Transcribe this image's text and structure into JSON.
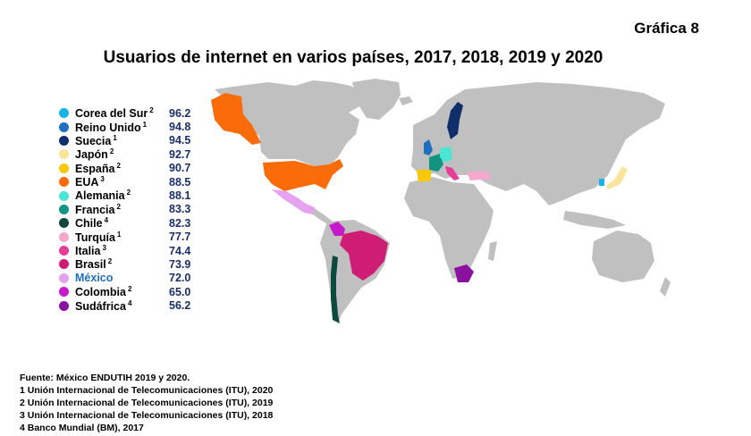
{
  "label": "Gráfica 8",
  "title": "Usuarios de internet en varios países, 2017, 2018, 2019 y 2020",
  "countries": [
    {
      "name": "Corea del Sur",
      "note": "2",
      "value": "96.2",
      "color": "#19b2e6"
    },
    {
      "name": "Reino Unido",
      "note": "1",
      "value": "94.8",
      "color": "#1e6fc0"
    },
    {
      "name": "Suecia",
      "note": "1",
      "value": "94.5",
      "color": "#102e6a"
    },
    {
      "name": "Japón",
      "note": "2",
      "value": "92.7",
      "color": "#fbe59a"
    },
    {
      "name": "España",
      "note": "2",
      "value": "90.7",
      "color": "#f7c90b"
    },
    {
      "name": "EUA",
      "note": "3",
      "value": "88.5",
      "color": "#fa6b0a"
    },
    {
      "name": "Alemania",
      "note": "2",
      "value": "88.1",
      "color": "#4be6d3"
    },
    {
      "name": "Francia",
      "note": "2",
      "value": "83.3",
      "color": "#139483"
    },
    {
      "name": "Chile",
      "note": "4",
      "value": "82.3",
      "color": "#0b4a3c"
    },
    {
      "name": "Turquía",
      "note": "1",
      "value": "77.7",
      "color": "#f5a8cd"
    },
    {
      "name": "Italia",
      "note": "3",
      "value": "74.4",
      "color": "#e43d96"
    },
    {
      "name": "Brasil",
      "note": "2",
      "value": "73.9",
      "color": "#cf1d76"
    },
    {
      "name": "México",
      "note": "",
      "value": "72.0",
      "color": "#e6a2f0"
    },
    {
      "name": "Colombia",
      "note": "2",
      "value": "65.0",
      "color": "#c71acb"
    },
    {
      "name": "Sudáfrica",
      "note": "4",
      "value": "56.2",
      "color": "#8b12a0"
    }
  ],
  "land_color": "#c0c0c0",
  "notes": [
    "Fuente: México ENDUTIH 2019 y 2020.",
    "1 Unión Internacional de Telecomunicaciones (ITU), 2020",
    "2 Unión Internacional de Telecomunicaciones (ITU), 2019",
    "3 Unión Internacional de Telecomunicaciones (ITU), 2018",
    "4 Banco Mundial (BM), 2017"
  ]
}
